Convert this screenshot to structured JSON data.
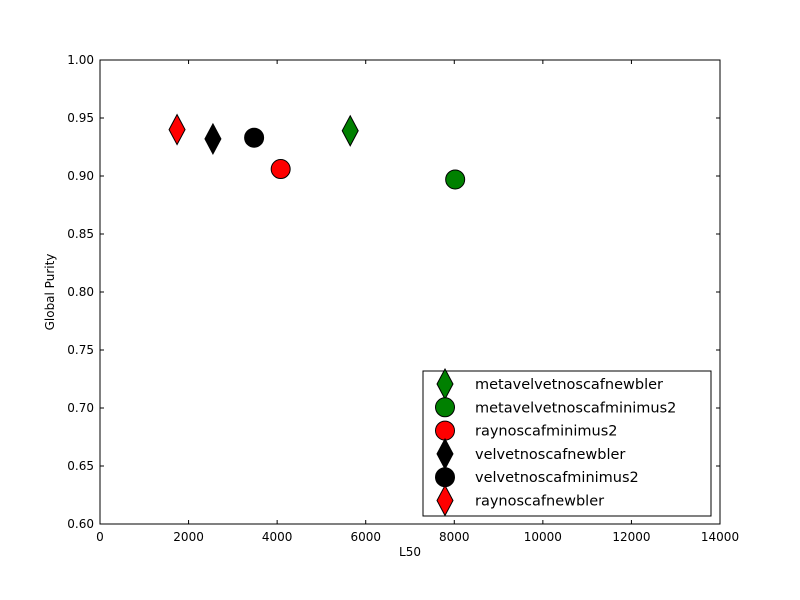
{
  "chart_data": {
    "type": "scatter",
    "title": "",
    "xlabel": "L50",
    "ylabel": "Global Purity",
    "xlim": [
      0,
      14000
    ],
    "ylim": [
      0.6,
      1.0
    ],
    "xticks": [
      0,
      2000,
      4000,
      6000,
      8000,
      10000,
      12000,
      14000
    ],
    "yticks": [
      0.6,
      0.65,
      0.7,
      0.75,
      0.8,
      0.85,
      0.9,
      0.95,
      1.0
    ],
    "grid": false,
    "legend_position": "lower-right",
    "series": [
      {
        "name": "metavelvetnoscafnewbler",
        "marker": "diamond",
        "color": "#008000",
        "x": 5650,
        "y": 0.939
      },
      {
        "name": "metavelvetnoscafminimus2",
        "marker": "circle",
        "color": "#008000",
        "x": 8020,
        "y": 0.897
      },
      {
        "name": "raynoscafminimus2",
        "marker": "circle",
        "color": "#ff0000",
        "x": 4080,
        "y": 0.906
      },
      {
        "name": "velvetnoscafnewbler",
        "marker": "diamond",
        "color": "#000000",
        "x": 2550,
        "y": 0.932
      },
      {
        "name": "velvetnoscafminimus2",
        "marker": "circle",
        "color": "#000000",
        "x": 3480,
        "y": 0.933
      },
      {
        "name": "raynoscafnewbler",
        "marker": "diamond",
        "color": "#ff0000",
        "x": 1740,
        "y": 0.94
      }
    ]
  }
}
